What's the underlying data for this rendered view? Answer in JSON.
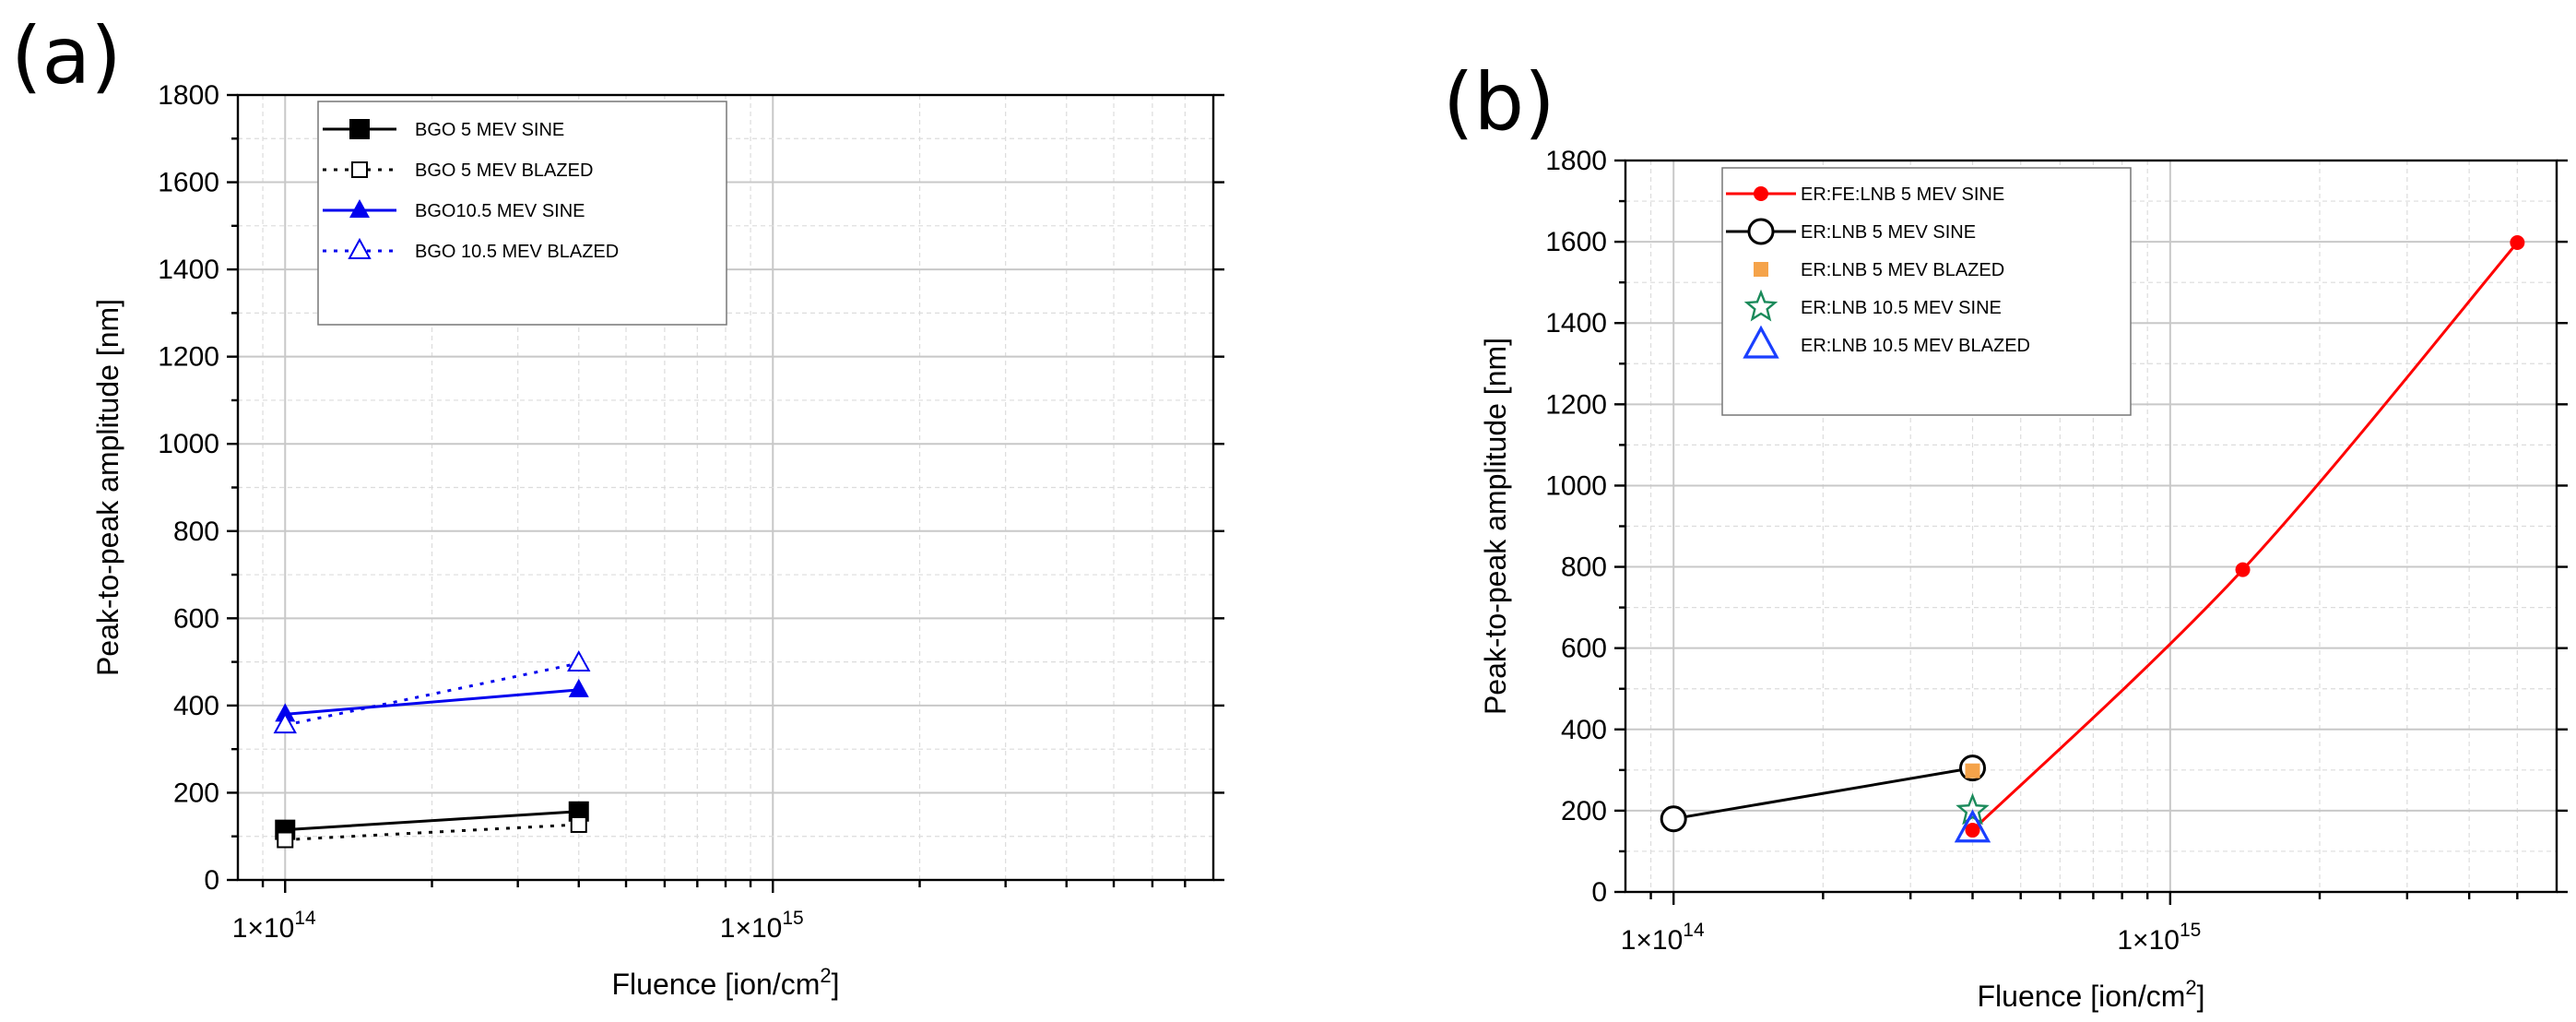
{
  "chart_data": [
    {
      "panel_label": "(a)",
      "type": "line",
      "xlabel": "Fluence [ion/cm",
      "xlabel_sup": "2",
      "xlabel_end": "]",
      "ylabel": "Peak-to-peak amplitude [nm]",
      "xscale": "log",
      "xlim": [
        80000000000000.0,
        8000000000000000.0
      ],
      "ylim": [
        0,
        1800
      ],
      "yticks": [
        "0",
        "200",
        "400",
        "600",
        "800",
        "1000",
        "1200",
        "1400",
        "1600",
        "1800"
      ],
      "xticks": [
        {
          "value": 100000000000000.0,
          "label": "1×10",
          "exp": "14"
        },
        {
          "value": 1000000000000000.0,
          "label": "1×10",
          "exp": "15"
        }
      ],
      "grid": true,
      "legend_position": "top-left",
      "series": [
        {
          "name": "BGO 5 MEV SINE",
          "color": "#000000",
          "line": "solid",
          "marker": "square-filled",
          "x": [
            100000000000000.0,
            400000000000000.0
          ],
          "y": [
            115,
            157
          ]
        },
        {
          "name": "BGO 5 MEV BLAZED",
          "color": "#000000",
          "line": "dotted",
          "marker": "square-open",
          "x": [
            100000000000000.0,
            400000000000000.0
          ],
          "y": [
            92,
            127
          ]
        },
        {
          "name": "BGO10.5 MEV SINE",
          "color": "#0000ee",
          "line": "solid",
          "marker": "triangle-filled",
          "x": [
            100000000000000.0,
            400000000000000.0
          ],
          "y": [
            380,
            436
          ]
        },
        {
          "name": "BGO 10.5 MEV BLAZED",
          "color": "#0000ee",
          "line": "dotted",
          "marker": "triangle-open",
          "x": [
            100000000000000.0,
            400000000000000.0
          ],
          "y": [
            355,
            497
          ]
        }
      ]
    },
    {
      "panel_label": "(b)",
      "type": "line",
      "xlabel": "Fluence [ion/cm",
      "xlabel_sup": "2",
      "xlabel_end": "]",
      "ylabel": "Peak-to-peak amplitude [nm]",
      "xscale": "log",
      "xlim": [
        80000000000000.0,
        6000000000000000.0
      ],
      "ylim": [
        0,
        1800
      ],
      "yticks": [
        "0",
        "200",
        "400",
        "600",
        "800",
        "1000",
        "1200",
        "1400",
        "1600",
        "1800"
      ],
      "xticks": [
        {
          "value": 100000000000000.0,
          "label": "1×10",
          "exp": "14"
        },
        {
          "value": 1000000000000000.0,
          "label": "1×10",
          "exp": "15"
        }
      ],
      "grid": true,
      "legend_position": "top-left",
      "series": [
        {
          "name": "ER:FE:LNB 5 MEV SINE",
          "color": "#ff0000",
          "line": "solid-curve",
          "marker": "circle-filled-small",
          "x": [
            400000000000000.0,
            1400000000000000.0,
            5000000000000000.0
          ],
          "y": [
            152,
            793,
            1598
          ]
        },
        {
          "name": "ER:LNB 5 MEV SINE",
          "color": "#000000",
          "line": "solid",
          "marker": "circle-open",
          "x": [
            100000000000000.0,
            400000000000000.0
          ],
          "y": [
            180,
            305
          ]
        },
        {
          "name": "ER:LNB 5 MEV BLAZED",
          "color": "#f5a34a",
          "line": "none",
          "marker": "square-filled-small",
          "x": [
            400000000000000.0
          ],
          "y": [
            298
          ]
        },
        {
          "name": "ER:LNB 10.5 MEV SINE",
          "color": "#1a8a5a",
          "line": "none",
          "marker": "star-open",
          "x": [
            400000000000000.0
          ],
          "y": [
            200
          ]
        },
        {
          "name": "ER:LNB 10.5 MEV BLAZED",
          "color": "#1a3fff",
          "line": "none",
          "marker": "triangle-open-large",
          "x": [
            400000000000000.0
          ],
          "y": [
            155
          ]
        }
      ]
    }
  ]
}
